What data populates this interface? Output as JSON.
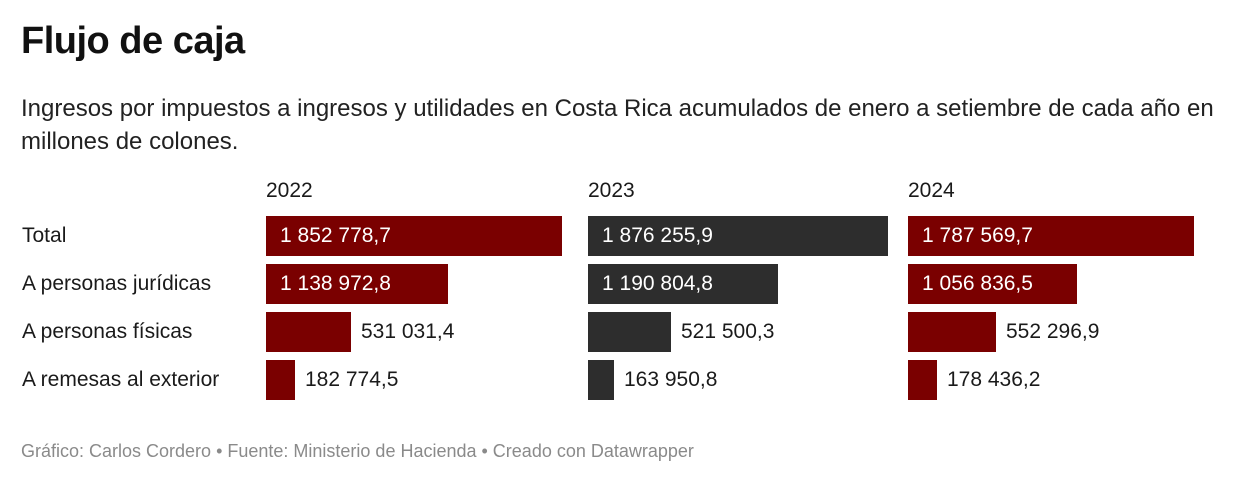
{
  "header": {
    "title": "Flujo de caja",
    "subtitle": "Ingresos por impuestos a ingresos y utilidades en Costa Rica acumulados de enero a setiembre de cada año en millones de colones."
  },
  "footer": {
    "text": "Gráfico: Carlos Cordero • Fuente: Ministerio de Hacienda • Creado con Datawrapper"
  },
  "chart_data": {
    "type": "bar",
    "orientation": "horizontal",
    "title": "Flujo de caja",
    "subtitle": "Ingresos por impuestos a ingresos y utilidades en Costa Rica acumulados de enero a setiembre de cada año en millones de colones.",
    "units": "millones de colones",
    "categories": [
      "Total",
      "A personas jurídicas",
      "A personas físicas",
      "A remesas al exterior"
    ],
    "series": [
      {
        "name": "2022",
        "color": "#7a0000",
        "values": [
          1852778.7,
          1138972.8,
          531031.4,
          182774.5
        ],
        "labels": [
          "1 852 778,7",
          "1 138 972,8",
          "531 031,4",
          "182 774,5"
        ]
      },
      {
        "name": "2023",
        "color": "#2d2d2d",
        "values": [
          1876255.9,
          1190804.8,
          521500.3,
          163950.8
        ],
        "labels": [
          "1 876 255,9",
          "1 190 804,8",
          "521 500,3",
          "163 950,8"
        ]
      },
      {
        "name": "2024",
        "color": "#7a0000",
        "values": [
          1787569.7,
          1056836.5,
          552296.9,
          178436.2
        ],
        "labels": [
          "1 787 569,7",
          "1 056 836,5",
          "552 296,9",
          "178 436,2"
        ]
      }
    ],
    "xlim": [
      0,
      1876255.9
    ],
    "grid": false,
    "legend": "none",
    "layout": "small-multiples columns by year"
  }
}
